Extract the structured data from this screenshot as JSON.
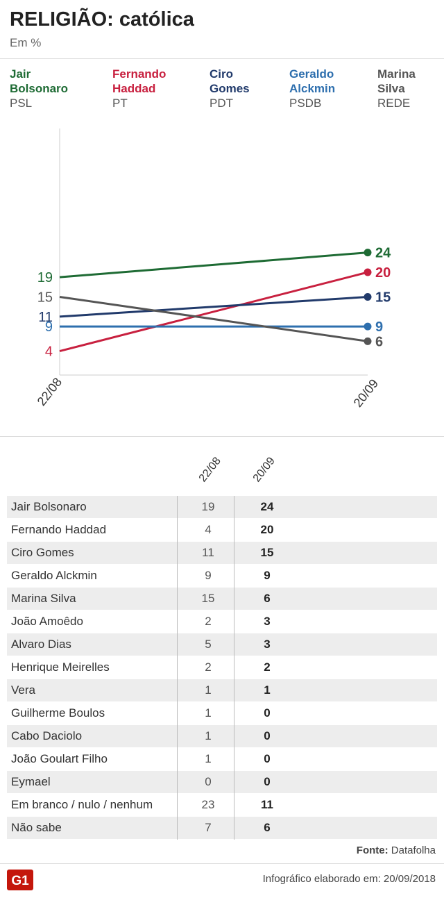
{
  "header": {
    "title": "RELIGIÃO: católica",
    "subtitle": "Em %"
  },
  "legend": [
    {
      "name_line1": "Jair",
      "name_line2": "Bolsonaro",
      "party": "PSL",
      "color": "#1e6b34"
    },
    {
      "name_line1": "Fernando",
      "name_line2": "Haddad",
      "party": "PT",
      "color": "#c8203f"
    },
    {
      "name_line1": "Ciro",
      "name_line2": "Gomes",
      "party": "PDT",
      "color": "#213a6b"
    },
    {
      "name_line1": "Geraldo",
      "name_line2": "Alckmin",
      "party": "PSDB",
      "color": "#2e6fae"
    },
    {
      "name_line1": "Marina",
      "name_line2": "Silva",
      "party": "REDE",
      "color": "#555555"
    }
  ],
  "chart_data": {
    "type": "line",
    "x": [
      "22/08",
      "20/09"
    ],
    "ylim": [
      0,
      50
    ],
    "series": [
      {
        "name": "Jair Bolsonaro",
        "values": [
          19,
          24
        ],
        "color": "#1e6b34"
      },
      {
        "name": "Fernando Haddad",
        "values": [
          4,
          20
        ],
        "color": "#c8203f"
      },
      {
        "name": "Ciro Gomes",
        "values": [
          11,
          15
        ],
        "color": "#213a6b"
      },
      {
        "name": "Geraldo Alckmin",
        "values": [
          9,
          9
        ],
        "color": "#2e6fae"
      },
      {
        "name": "Marina Silva",
        "values": [
          15,
          6
        ],
        "color": "#555555"
      }
    ]
  },
  "table": {
    "columns": [
      "22/08",
      "20/09"
    ],
    "rows": [
      {
        "name": "Jair Bolsonaro",
        "v1": "19",
        "v2": "24"
      },
      {
        "name": "Fernando Haddad",
        "v1": "4",
        "v2": "20"
      },
      {
        "name": "Ciro Gomes",
        "v1": "11",
        "v2": "15"
      },
      {
        "name": "Geraldo Alckmin",
        "v1": "9",
        "v2": "9"
      },
      {
        "name": "Marina Silva",
        "v1": "15",
        "v2": "6"
      },
      {
        "name": "João Amoêdo",
        "v1": "2",
        "v2": "3"
      },
      {
        "name": "Alvaro Dias",
        "v1": "5",
        "v2": "3"
      },
      {
        "name": "Henrique Meirelles",
        "v1": "2",
        "v2": "2"
      },
      {
        "name": "Vera",
        "v1": "1",
        "v2": "1"
      },
      {
        "name": "Guilherme Boulos",
        "v1": "1",
        "v2": "0"
      },
      {
        "name": "Cabo Daciolo",
        "v1": "1",
        "v2": "0"
      },
      {
        "name": "João Goulart Filho",
        "v1": "1",
        "v2": "0"
      },
      {
        "name": "Eymael",
        "v1": "0",
        "v2": "0"
      },
      {
        "name": "Em branco / nulo / nenhum",
        "v1": "23",
        "v2": "11"
      },
      {
        "name": "Não sabe",
        "v1": "7",
        "v2": "6"
      }
    ]
  },
  "footer": {
    "source_label": "Fonte:",
    "source_value": "Datafolha",
    "credit": "Infográfico elaborado em: 20/09/2018",
    "logo_text": "G1",
    "logo_color": "#c4170c"
  }
}
